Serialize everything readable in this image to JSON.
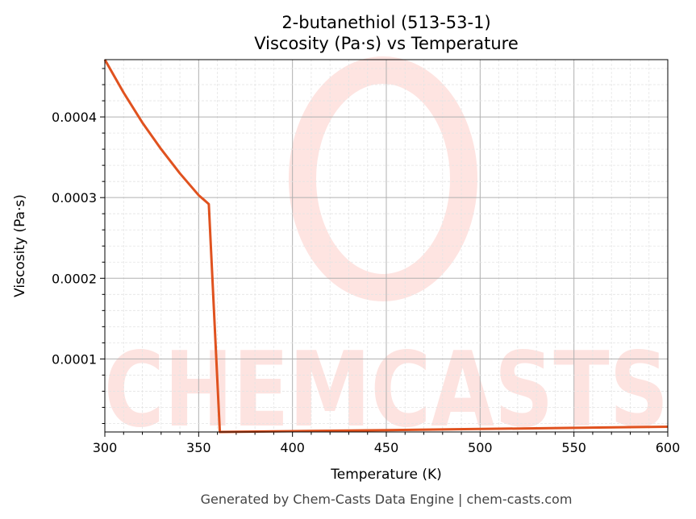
{
  "chart_data": {
    "type": "line",
    "title_line1": "2-butanethiol (513-53-1)",
    "title_line2": "Viscosity (Pa·s) vs Temperature",
    "xlabel": "Temperature (K)",
    "ylabel": "Viscosity (Pa·s)",
    "xlim": [
      300,
      600
    ],
    "ylim": [
      9.5e-06,
      0.000471
    ],
    "xticks": [
      "300",
      "350",
      "400",
      "450",
      "500",
      "550",
      "600"
    ],
    "yticks": [
      "0.0001",
      "0.0002",
      "0.0003",
      "0.0004"
    ],
    "grid": true,
    "line_color": "#e0521f",
    "series": [
      {
        "x": [
          300,
          310,
          320,
          330,
          340,
          350,
          355.4,
          361.3,
          400,
          450,
          500,
          550,
          600
        ],
        "y": [
          0.000471,
          0.00043,
          0.000393,
          0.00036,
          0.00033,
          0.000303,
          0.000292,
          9.5e-06,
          1.05e-05,
          1.18e-05,
          1.32e-05,
          1.46e-05,
          1.6e-05
        ]
      }
    ]
  },
  "watermark": "CHEMCASTS",
  "footer": "Generated by Chem-Casts Data Engine | chem-casts.com"
}
